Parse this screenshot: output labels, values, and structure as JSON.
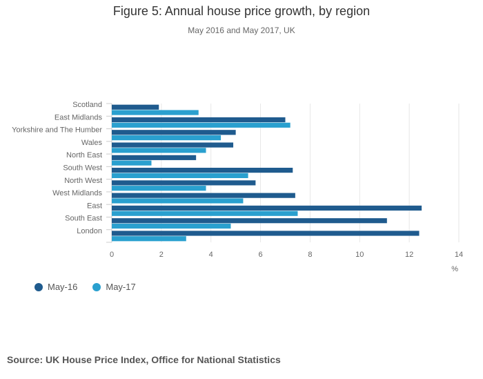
{
  "colors": {
    "series_1": "#1f5b8e",
    "series_2": "#2aa0cf",
    "grid": "#e6e6e6",
    "axis_text": "#666666"
  },
  "chart_data": {
    "type": "bar",
    "orientation": "horizontal",
    "title": "Figure 5: Annual house price growth, by region",
    "subtitle": "May 2016 and May 2017, UK",
    "categories": [
      "Scotland",
      "East Midlands",
      "Yorkshire and The Humber",
      "Wales",
      "North East",
      "South West",
      "North West",
      "West Midlands",
      "East",
      "South East",
      "London"
    ],
    "series": [
      {
        "name": "May-16",
        "values": [
          1.9,
          7.0,
          5.0,
          4.9,
          3.4,
          7.3,
          5.8,
          7.4,
          12.5,
          11.1,
          12.4
        ]
      },
      {
        "name": "May-17",
        "values": [
          3.5,
          7.2,
          4.4,
          3.8,
          1.6,
          5.5,
          3.8,
          5.3,
          7.5,
          4.8,
          3.0
        ]
      }
    ],
    "xlabel": "%",
    "ylabel": "",
    "xlim": [
      0,
      14
    ],
    "xticks": [
      0,
      2,
      4,
      6,
      8,
      10,
      12,
      14
    ],
    "grid": true,
    "legend_position": "bottom-left"
  },
  "source": "Source: UK House Price Index, Office for National Statistics"
}
